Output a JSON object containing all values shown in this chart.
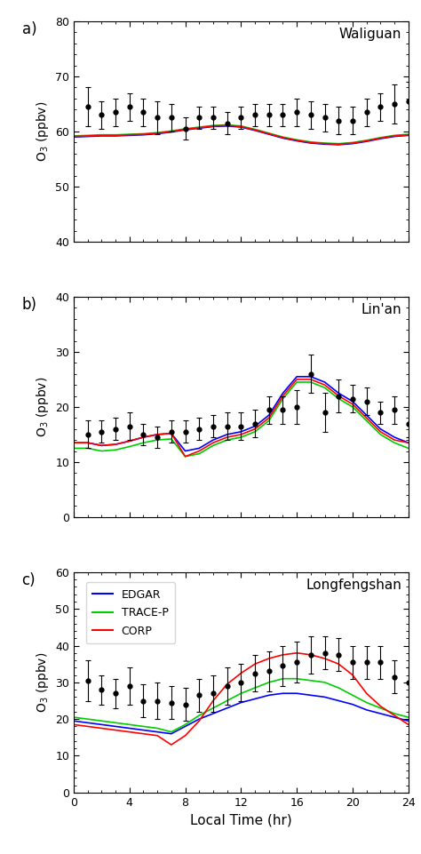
{
  "hours_obs": [
    1,
    2,
    3,
    4,
    5,
    6,
    7,
    8,
    9,
    10,
    11,
    12,
    13,
    14,
    15,
    16,
    17,
    18,
    19,
    20,
    21,
    22,
    23,
    24
  ],
  "hours_model": [
    0,
    1,
    2,
    3,
    4,
    5,
    6,
    7,
    8,
    9,
    10,
    11,
    12,
    13,
    14,
    15,
    16,
    17,
    18,
    19,
    20,
    21,
    22,
    23,
    24
  ],
  "waliguan": {
    "title": "Waliguan",
    "ylabel": "O$_3$ (ppbv)",
    "ylim": [
      40,
      80
    ],
    "yticks": [
      40,
      50,
      60,
      70,
      80
    ],
    "obs_mean": [
      64.5,
      63.0,
      63.5,
      64.5,
      63.5,
      62.5,
      62.5,
      60.5,
      62.5,
      62.5,
      61.5,
      62.5,
      63.0,
      63.0,
      63.0,
      63.5,
      63.0,
      62.5,
      62.0,
      62.0,
      63.5,
      64.5,
      65.0,
      65.5
    ],
    "obs_std": [
      3.5,
      2.5,
      2.5,
      2.5,
      2.5,
      3.0,
      2.5,
      2.0,
      2.0,
      2.0,
      2.0,
      2.0,
      2.0,
      2.0,
      2.0,
      2.5,
      2.5,
      2.5,
      2.5,
      2.5,
      2.5,
      2.5,
      3.5,
      3.5
    ],
    "edgar": [
      59.0,
      59.1,
      59.2,
      59.2,
      59.3,
      59.4,
      59.6,
      59.9,
      60.3,
      60.6,
      60.9,
      61.0,
      60.8,
      60.2,
      59.5,
      58.8,
      58.3,
      57.9,
      57.7,
      57.6,
      57.8,
      58.2,
      58.7,
      59.1,
      59.3
    ],
    "tracep": [
      59.2,
      59.3,
      59.4,
      59.4,
      59.5,
      59.6,
      59.8,
      60.1,
      60.5,
      60.8,
      61.1,
      61.2,
      61.0,
      60.4,
      59.7,
      59.0,
      58.5,
      58.1,
      57.9,
      57.8,
      58.0,
      58.4,
      58.9,
      59.3,
      59.5
    ],
    "corp": [
      59.1,
      59.2,
      59.3,
      59.3,
      59.4,
      59.5,
      59.7,
      60.0,
      60.4,
      60.7,
      61.0,
      61.1,
      60.9,
      60.3,
      59.6,
      58.9,
      58.4,
      58.0,
      57.8,
      57.7,
      57.9,
      58.3,
      58.8,
      59.2,
      59.4
    ]
  },
  "linan": {
    "title": "Lin'an",
    "ylabel": "O$_3$ (ppbv)",
    "ylim": [
      0,
      40
    ],
    "yticks": [
      0,
      10,
      20,
      30,
      40
    ],
    "obs_mean": [
      15.0,
      15.5,
      16.0,
      16.5,
      15.0,
      14.5,
      15.5,
      15.5,
      16.0,
      16.5,
      16.5,
      16.5,
      17.0,
      19.5,
      19.5,
      20.0,
      26.0,
      19.0,
      22.0,
      21.5,
      21.0,
      19.0,
      19.5,
      17.0
    ],
    "obs_std": [
      2.5,
      2.0,
      2.0,
      2.5,
      2.0,
      2.0,
      2.0,
      2.0,
      2.0,
      2.0,
      2.5,
      2.5,
      2.5,
      2.5,
      2.5,
      3.0,
      3.5,
      3.5,
      3.0,
      2.5,
      2.5,
      2.0,
      2.5,
      2.5
    ],
    "edgar": [
      13.5,
      13.5,
      13.0,
      13.2,
      13.8,
      14.5,
      15.0,
      15.2,
      12.0,
      12.5,
      14.0,
      15.0,
      15.5,
      16.5,
      18.5,
      22.5,
      25.5,
      25.5,
      24.5,
      22.5,
      21.0,
      18.5,
      16.0,
      14.5,
      13.5
    ],
    "tracep": [
      12.5,
      12.5,
      12.0,
      12.2,
      12.8,
      13.5,
      14.0,
      14.2,
      11.0,
      11.5,
      13.0,
      14.0,
      14.5,
      15.5,
      17.5,
      21.5,
      24.5,
      24.5,
      23.5,
      21.5,
      20.0,
      17.5,
      15.0,
      13.5,
      12.5
    ],
    "corp": [
      13.5,
      13.5,
      13.0,
      13.2,
      13.8,
      14.5,
      15.0,
      15.2,
      11.0,
      12.0,
      13.5,
      14.5,
      15.0,
      16.0,
      18.0,
      22.0,
      25.0,
      25.0,
      24.0,
      22.0,
      20.5,
      18.0,
      15.5,
      14.0,
      13.5
    ]
  },
  "longfengshan": {
    "title": "Longfengshan",
    "ylabel": "O$_3$ (ppbv)",
    "ylim": [
      0,
      60
    ],
    "yticks": [
      0,
      10,
      20,
      30,
      40,
      50,
      60
    ],
    "obs_mean": [
      30.5,
      28.0,
      27.0,
      29.0,
      25.0,
      25.0,
      24.5,
      24.0,
      26.5,
      27.0,
      29.0,
      30.0,
      32.5,
      33.0,
      34.5,
      35.5,
      37.5,
      38.0,
      37.5,
      35.5,
      35.5,
      35.5,
      31.5,
      30.0
    ],
    "obs_std": [
      5.5,
      4.0,
      4.0,
      5.0,
      4.5,
      5.0,
      4.5,
      4.5,
      4.5,
      5.0,
      5.0,
      5.0,
      5.0,
      5.5,
      5.5,
      5.5,
      5.0,
      4.5,
      4.5,
      4.5,
      4.5,
      4.5,
      4.5,
      4.0
    ],
    "edgar": [
      19.5,
      19.0,
      18.5,
      18.0,
      17.5,
      17.0,
      16.5,
      16.0,
      18.0,
      20.0,
      21.5,
      23.0,
      24.5,
      25.5,
      26.5,
      27.0,
      27.0,
      26.5,
      26.0,
      25.0,
      24.0,
      22.5,
      21.5,
      20.5,
      19.5
    ],
    "tracep": [
      20.5,
      20.0,
      19.5,
      19.0,
      18.5,
      18.0,
      17.5,
      16.5,
      18.5,
      21.0,
      23.0,
      25.0,
      27.0,
      28.5,
      30.0,
      31.0,
      31.0,
      30.5,
      30.0,
      28.5,
      26.5,
      24.5,
      23.0,
      21.5,
      20.5
    ],
    "corp": [
      18.5,
      18.0,
      17.5,
      17.0,
      16.5,
      16.0,
      15.5,
      13.0,
      15.5,
      19.5,
      25.0,
      29.5,
      32.5,
      35.0,
      36.5,
      37.5,
      38.0,
      37.5,
      36.5,
      35.0,
      32.0,
      27.0,
      23.5,
      21.0,
      18.5
    ]
  },
  "colors": {
    "edgar": "#0000FF",
    "tracep": "#00CC00",
    "corp": "#FF0000",
    "obs": "black"
  },
  "legend_labels": [
    "EDGAR",
    "TRACE-P",
    "CORP"
  ],
  "xlabel": "Local Time (hr)",
  "panel_labels": [
    "a)",
    "b)",
    "c)"
  ]
}
